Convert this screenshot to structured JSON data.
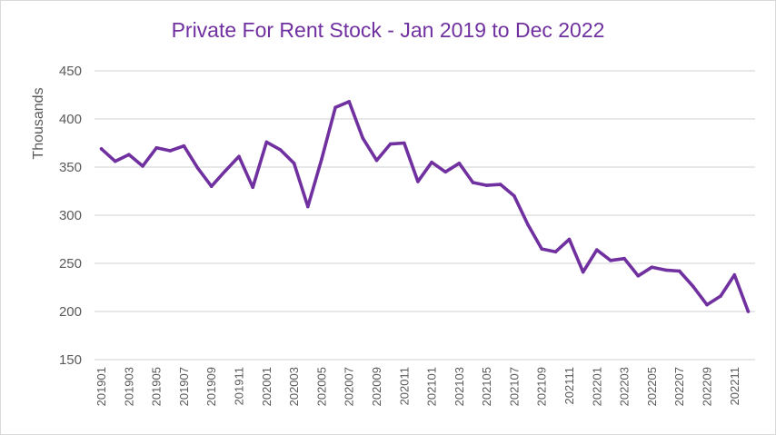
{
  "chart_data": {
    "type": "line",
    "title": "Private For Rent Stock - Jan 2019 to Dec 2022",
    "xlabel": "",
    "ylabel": "Thousands",
    "ylim": [
      150,
      450
    ],
    "yticks": [
      150,
      200,
      250,
      300,
      350,
      400,
      450
    ],
    "grid": true,
    "legend": "none",
    "line_color": "#7030a0",
    "grid_color": "#d9d9d9",
    "x": [
      "201901",
      "201902",
      "201903",
      "201904",
      "201905",
      "201906",
      "201907",
      "201908",
      "201909",
      "201910",
      "201911",
      "201912",
      "202001",
      "202002",
      "202003",
      "202004",
      "202005",
      "202006",
      "202007",
      "202008",
      "202009",
      "202010",
      "202011",
      "202012",
      "202101",
      "202102",
      "202103",
      "202104",
      "202105",
      "202106",
      "202107",
      "202108",
      "202109",
      "202110",
      "202111",
      "202112",
      "202201",
      "202202",
      "202203",
      "202204",
      "202205",
      "202206",
      "202207",
      "202208",
      "202209",
      "202210",
      "202211",
      "202212"
    ],
    "x_tick_labels": [
      "201901",
      "201903",
      "201905",
      "201907",
      "201909",
      "201911",
      "202001",
      "202003",
      "202005",
      "202007",
      "202009",
      "202011",
      "202101",
      "202103",
      "202105",
      "202107",
      "202109",
      "202111",
      "202201",
      "202203",
      "202205",
      "202207",
      "202209",
      "202211"
    ],
    "series": [
      {
        "values": [
          369,
          356,
          363,
          351,
          370,
          367,
          372,
          349,
          330,
          346,
          361,
          329,
          376,
          368,
          354,
          309,
          358,
          412,
          418,
          380,
          357,
          374,
          375,
          335,
          355,
          345,
          354,
          334,
          331,
          332,
          320,
          290,
          265,
          262,
          275,
          241,
          264,
          253,
          255,
          237,
          246,
          243,
          242,
          226,
          207,
          216,
          238,
          200
        ]
      }
    ]
  }
}
